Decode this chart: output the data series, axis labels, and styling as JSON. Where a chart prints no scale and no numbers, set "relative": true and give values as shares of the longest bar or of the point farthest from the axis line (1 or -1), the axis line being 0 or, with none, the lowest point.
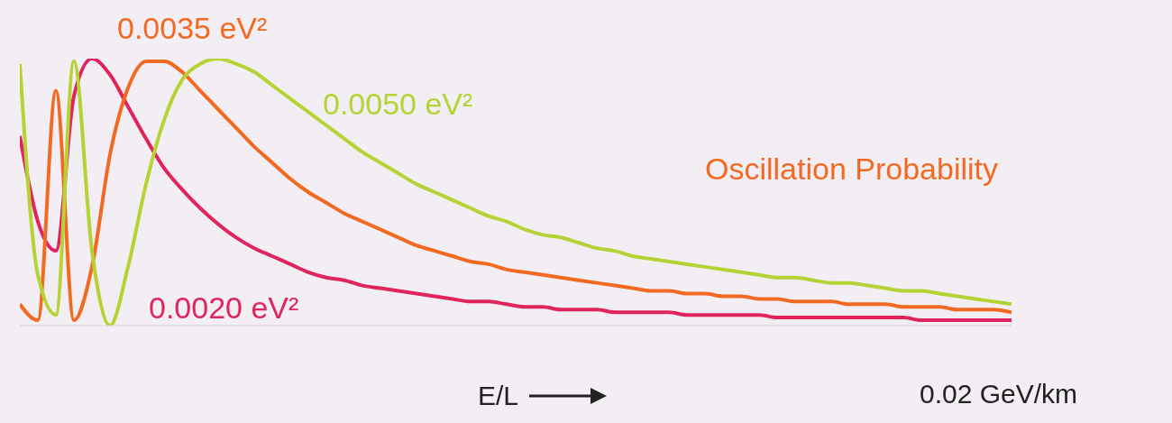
{
  "chart_data": {
    "type": "line",
    "relative": true,
    "title": "Oscillation Probability",
    "xlabel": "E/L",
    "annotations": [
      "0.02 GeV/km"
    ],
    "categories": [
      null,
      null,
      null,
      null,
      null,
      null,
      null,
      null,
      null,
      null,
      null,
      null,
      null,
      null,
      null,
      null,
      null,
      null,
      null,
      null,
      null,
      null,
      null,
      null,
      null,
      null,
      null,
      null,
      null,
      null,
      null,
      null,
      null,
      null,
      null,
      null,
      null,
      null,
      null,
      null,
      null,
      null,
      null,
      null,
      null,
      null,
      null,
      null,
      null,
      null,
      null,
      null,
      null,
      null,
      null,
      null
    ],
    "series": [
      {
        "name": "0.0020 eV²",
        "color": "#e0245e",
        "values": [
          0.71,
          0.39,
          0.28,
          0.86,
          1.0,
          0.94,
          0.82,
          0.7,
          0.59,
          0.51,
          0.44,
          0.38,
          0.33,
          0.29,
          0.26,
          0.23,
          0.2,
          0.18,
          0.17,
          0.15,
          0.14,
          0.13,
          0.12,
          0.11,
          0.1,
          0.09,
          0.09,
          0.08,
          0.07,
          0.07,
          0.06,
          0.06,
          0.06,
          0.05,
          0.05,
          0.05,
          0.05,
          0.04,
          0.04,
          0.04,
          0.04,
          0.04,
          0.03,
          0.03,
          0.03,
          0.03,
          0.03,
          0.03,
          0.03,
          0.03,
          0.02,
          0.02,
          0.02,
          0.02,
          0.02,
          0.02
        ]
      },
      {
        "name": "0.0035 eV²",
        "color": "#f26a21",
        "values": [
          0.08,
          0.02,
          0.88,
          0.02,
          0.22,
          0.64,
          0.89,
          0.99,
          0.99,
          0.95,
          0.88,
          0.81,
          0.74,
          0.67,
          0.61,
          0.55,
          0.5,
          0.46,
          0.42,
          0.39,
          0.36,
          0.33,
          0.3,
          0.28,
          0.26,
          0.24,
          0.23,
          0.21,
          0.2,
          0.19,
          0.18,
          0.17,
          0.16,
          0.15,
          0.14,
          0.13,
          0.13,
          0.12,
          0.12,
          0.11,
          0.11,
          0.1,
          0.1,
          0.09,
          0.09,
          0.09,
          0.08,
          0.08,
          0.08,
          0.07,
          0.07,
          0.07,
          0.06,
          0.06,
          0.06,
          0.05
        ]
      },
      {
        "name": "0.0050 eV²",
        "color": "#b5d334",
        "values": [
          0.98,
          0.19,
          0.04,
          0.99,
          0.28,
          0.0,
          0.22,
          0.53,
          0.77,
          0.92,
          0.98,
          1.0,
          0.98,
          0.95,
          0.9,
          0.85,
          0.8,
          0.75,
          0.7,
          0.65,
          0.61,
          0.57,
          0.53,
          0.5,
          0.47,
          0.44,
          0.41,
          0.39,
          0.36,
          0.34,
          0.33,
          0.31,
          0.29,
          0.28,
          0.26,
          0.25,
          0.24,
          0.23,
          0.22,
          0.21,
          0.2,
          0.19,
          0.18,
          0.18,
          0.17,
          0.16,
          0.16,
          0.15,
          0.14,
          0.13,
          0.13,
          0.12,
          0.11,
          0.1,
          0.09,
          0.08
        ]
      }
    ]
  }
}
